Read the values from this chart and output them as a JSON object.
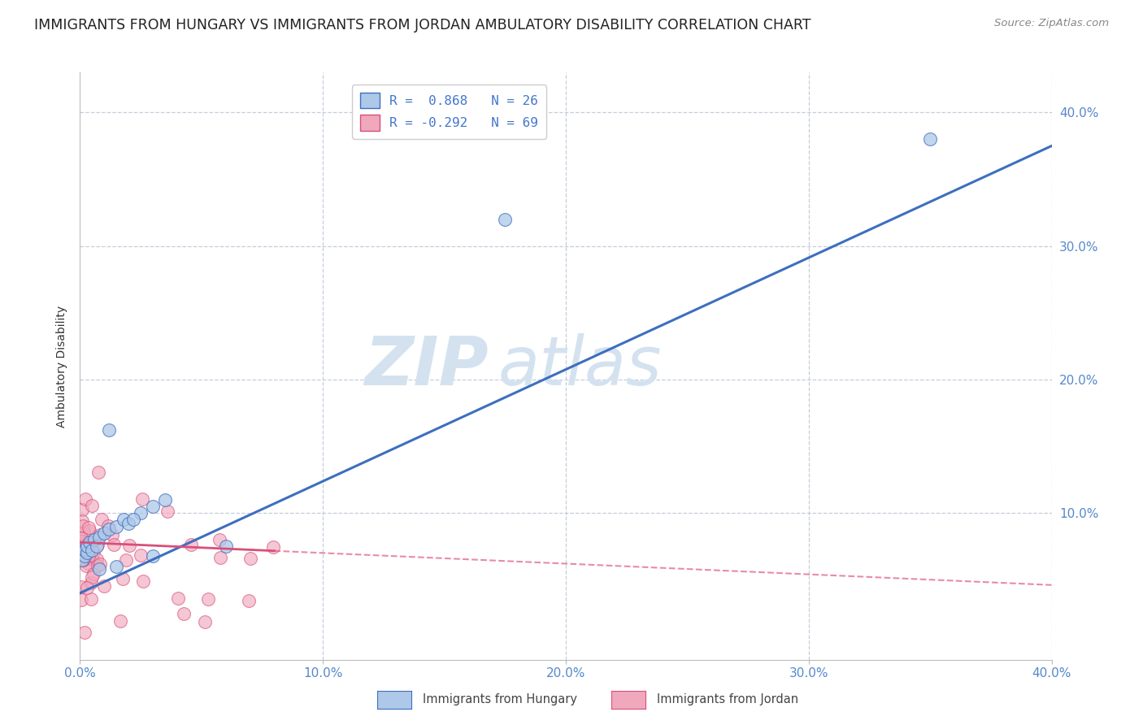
{
  "title": "IMMIGRANTS FROM HUNGARY VS IMMIGRANTS FROM JORDAN AMBULATORY DISABILITY CORRELATION CHART",
  "source": "Source: ZipAtlas.com",
  "ylabel": "Ambulatory Disability",
  "xlim": [
    0.0,
    0.4
  ],
  "ylim": [
    -0.01,
    0.43
  ],
  "hungary_color": "#adc8e8",
  "jordan_color": "#f0a8bc",
  "hungary_line_color": "#3d6fbe",
  "jordan_line_color": "#d94f7a",
  "watermark_color": "#d4e2f0",
  "bg_color": "#ffffff",
  "grid_color": "#c0c8d8",
  "title_fontsize": 12.5,
  "axis_label_fontsize": 10,
  "tick_fontsize": 11,
  "legend_fontsize": 11.5
}
